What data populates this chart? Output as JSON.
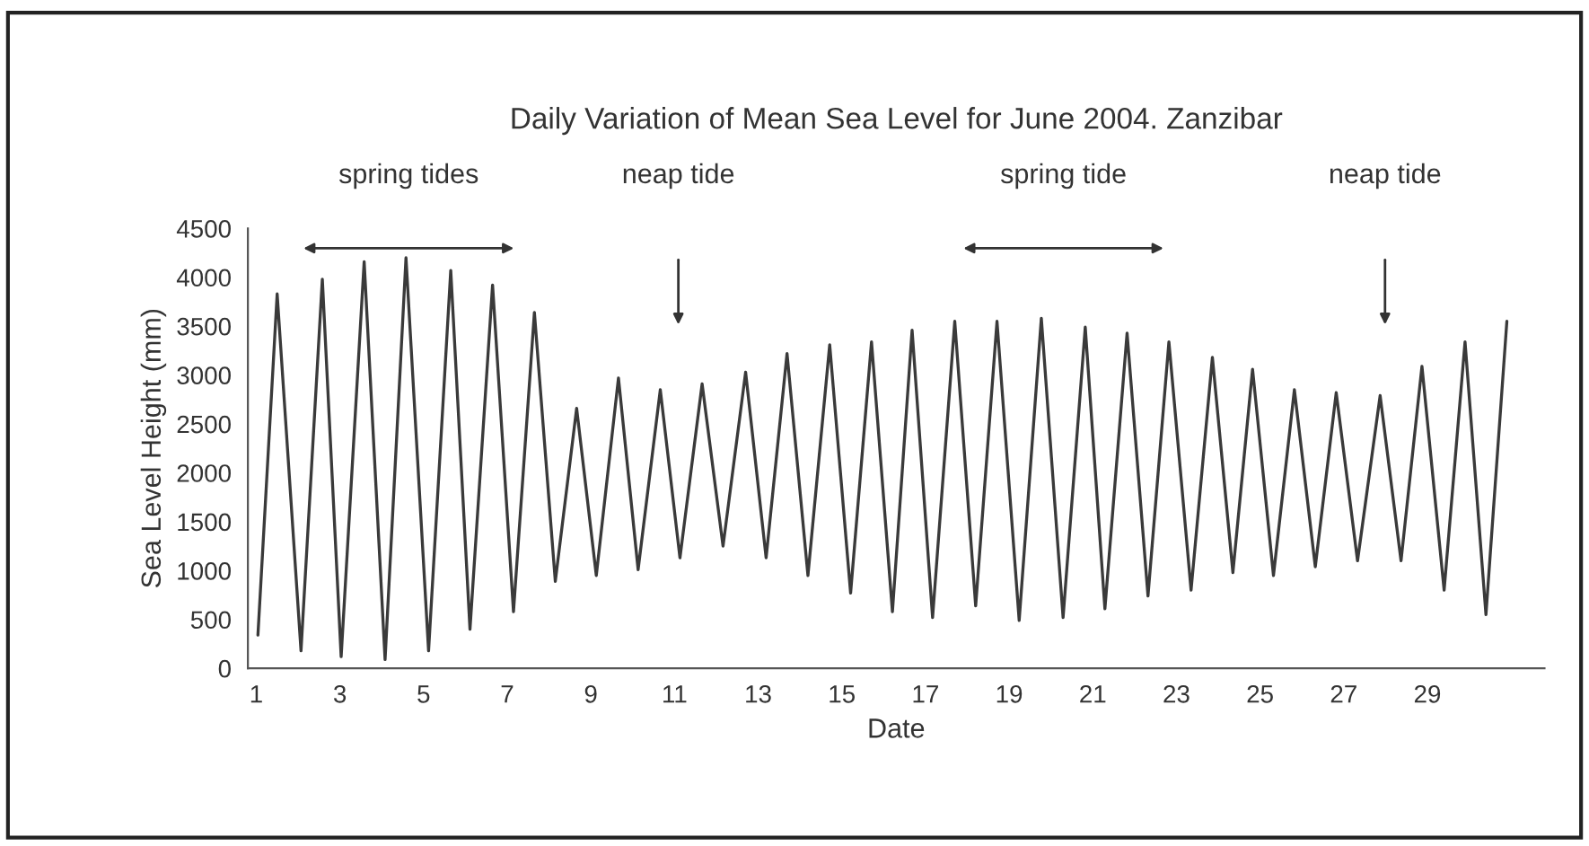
{
  "chart_data": {
    "type": "line",
    "title": "Daily Variation of Mean Sea Level for June 2004. Zanzibar",
    "xlabel": "Date",
    "ylabel": "Sea Level Height (mm)",
    "x": [
      1.04,
      1.5,
      2.07,
      2.58,
      3.03,
      3.58,
      4.08,
      4.58,
      5.12,
      5.65,
      6.11,
      6.65,
      7.15,
      7.65,
      8.15,
      8.66,
      9.13,
      9.66,
      10.13,
      10.66,
      11.13,
      11.66,
      12.16,
      12.7,
      13.19,
      13.69,
      14.19,
      14.71,
      15.21,
      15.71,
      16.21,
      16.68,
      17.17,
      17.7,
      18.2,
      18.71,
      19.24,
      19.77,
      20.29,
      20.82,
      21.29,
      21.82,
      22.32,
      22.82,
      23.35,
      23.86,
      24.35,
      24.82,
      25.32,
      25.82,
      26.32,
      26.82,
      27.33,
      27.87,
      28.37,
      28.87,
      29.4,
      29.9,
      30.4,
      30.9
    ],
    "series": [
      {
        "color": "#3a3a3a",
        "values": [
          340,
          3830,
          180,
          3980,
          120,
          4160,
          90,
          4200,
          180,
          4070,
          400,
          3920,
          580,
          3640,
          890,
          2660,
          950,
          2970,
          1010,
          2850,
          1130,
          2910,
          1250,
          3030,
          1130,
          3220,
          950,
          3310,
          770,
          3340,
          580,
          3460,
          520,
          3550,
          640,
          3550,
          490,
          3580,
          520,
          3490,
          610,
          3430,
          740,
          3340,
          800,
          3180,
          980,
          3060,
          950,
          2850,
          1040,
          2820,
          1100,
          2790,
          1100,
          3090,
          800,
          3340,
          550,
          3550
        ]
      }
    ],
    "xlim": [
      0.8,
      31.8
    ],
    "xticks": [
      1,
      3,
      5,
      7,
      9,
      11,
      13,
      15,
      17,
      19,
      21,
      23,
      25,
      27,
      29
    ],
    "ylim": [
      0,
      4500
    ],
    "yticks": [
      0,
      500,
      1000,
      1500,
      2000,
      2500,
      3000,
      3500,
      4000,
      4500
    ],
    "grid": false,
    "legend": false,
    "annotations": [
      "spring tides",
      "neap tide",
      "spring tide",
      "neap tide"
    ]
  }
}
